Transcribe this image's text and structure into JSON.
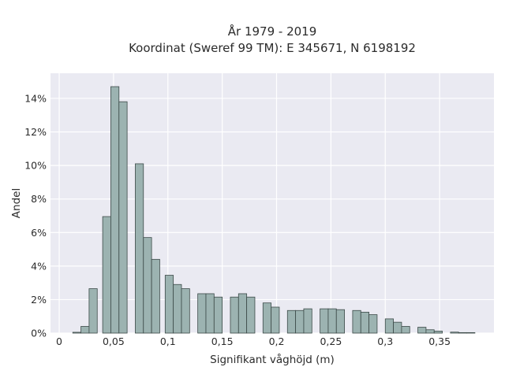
{
  "chart_data": {
    "type": "bar",
    "title": "År 1979 - 2019",
    "subtitle": "Koordinat (Sweref 99 TM): E 345671, N 6198192",
    "xlabel": "Signifikant våghöjd (m)",
    "ylabel": "Andel",
    "xlim": [
      -0.008,
      0.4
    ],
    "ylim": [
      0,
      15.5
    ],
    "grid": true,
    "x_ticks": [
      {
        "value": 0,
        "label": "0"
      },
      {
        "value": 0.05,
        "label": "0,05"
      },
      {
        "value": 0.1,
        "label": "0,1"
      },
      {
        "value": 0.15,
        "label": "0,15"
      },
      {
        "value": 0.2,
        "label": "0,2"
      },
      {
        "value": 0.25,
        "label": "0,25"
      },
      {
        "value": 0.3,
        "label": "0,3"
      },
      {
        "value": 0.35,
        "label": "0,35"
      }
    ],
    "y_ticks": [
      {
        "value": 0,
        "label": "0%"
      },
      {
        "value": 2,
        "label": "2%"
      },
      {
        "value": 4,
        "label": "4%"
      },
      {
        "value": 6,
        "label": "6%"
      },
      {
        "value": 8,
        "label": "8%"
      },
      {
        "value": 10,
        "label": "10%"
      },
      {
        "value": 12,
        "label": "12%"
      },
      {
        "value": 14,
        "label": "14%"
      }
    ],
    "bin_width": 0.0075,
    "bins": [
      {
        "x0": 0.0125,
        "x1": 0.02,
        "value": 0.05
      },
      {
        "x0": 0.02,
        "x1": 0.0275,
        "value": 0.4
      },
      {
        "x0": 0.0275,
        "x1": 0.035,
        "value": 2.65
      },
      {
        "x0": 0.04,
        "x1": 0.0475,
        "value": 6.95
      },
      {
        "x0": 0.0475,
        "x1": 0.055,
        "value": 14.7
      },
      {
        "x0": 0.055,
        "x1": 0.0625,
        "value": 13.8
      },
      {
        "x0": 0.07,
        "x1": 0.0775,
        "value": 10.1
      },
      {
        "x0": 0.0775,
        "x1": 0.085,
        "value": 5.7
      },
      {
        "x0": 0.085,
        "x1": 0.0925,
        "value": 4.4
      },
      {
        "x0": 0.0975,
        "x1": 0.105,
        "value": 3.45
      },
      {
        "x0": 0.105,
        "x1": 0.1125,
        "value": 2.9
      },
      {
        "x0": 0.1125,
        "x1": 0.12,
        "value": 2.65
      },
      {
        "x0": 0.1275,
        "x1": 0.135,
        "value": 2.35
      },
      {
        "x0": 0.135,
        "x1": 0.1425,
        "value": 2.35
      },
      {
        "x0": 0.1425,
        "x1": 0.15,
        "value": 2.15
      },
      {
        "x0": 0.1575,
        "x1": 0.165,
        "value": 2.15
      },
      {
        "x0": 0.165,
        "x1": 0.1725,
        "value": 2.35
      },
      {
        "x0": 0.1725,
        "x1": 0.18,
        "value": 2.15
      },
      {
        "x0": 0.1875,
        "x1": 0.195,
        "value": 1.8
      },
      {
        "x0": 0.195,
        "x1": 0.2025,
        "value": 1.55
      },
      {
        "x0": 0.21,
        "x1": 0.2175,
        "value": 1.35
      },
      {
        "x0": 0.2175,
        "x1": 0.225,
        "value": 1.35
      },
      {
        "x0": 0.225,
        "x1": 0.2325,
        "value": 1.45
      },
      {
        "x0": 0.24,
        "x1": 0.2475,
        "value": 1.45
      },
      {
        "x0": 0.2475,
        "x1": 0.255,
        "value": 1.45
      },
      {
        "x0": 0.255,
        "x1": 0.2625,
        "value": 1.4
      },
      {
        "x0": 0.27,
        "x1": 0.2775,
        "value": 1.35
      },
      {
        "x0": 0.2775,
        "x1": 0.285,
        "value": 1.25
      },
      {
        "x0": 0.285,
        "x1": 0.2925,
        "value": 1.1
      },
      {
        "x0": 0.3,
        "x1": 0.3075,
        "value": 0.85
      },
      {
        "x0": 0.3075,
        "x1": 0.315,
        "value": 0.65
      },
      {
        "x0": 0.315,
        "x1": 0.3225,
        "value": 0.4
      },
      {
        "x0": 0.33,
        "x1": 0.3375,
        "value": 0.35
      },
      {
        "x0": 0.3375,
        "x1": 0.345,
        "value": 0.2
      },
      {
        "x0": 0.345,
        "x1": 0.3525,
        "value": 0.12
      },
      {
        "x0": 0.36,
        "x1": 0.3675,
        "value": 0.06
      },
      {
        "x0": 0.3675,
        "x1": 0.375,
        "value": 0.03
      },
      {
        "x0": 0.375,
        "x1": 0.3825,
        "value": 0.03
      }
    ],
    "colors": {
      "plot_background": "#eaeaf2",
      "grid": "#ffffff",
      "bar_fill": "#9cb3b1",
      "bar_edge": "#3c4a48"
    }
  }
}
